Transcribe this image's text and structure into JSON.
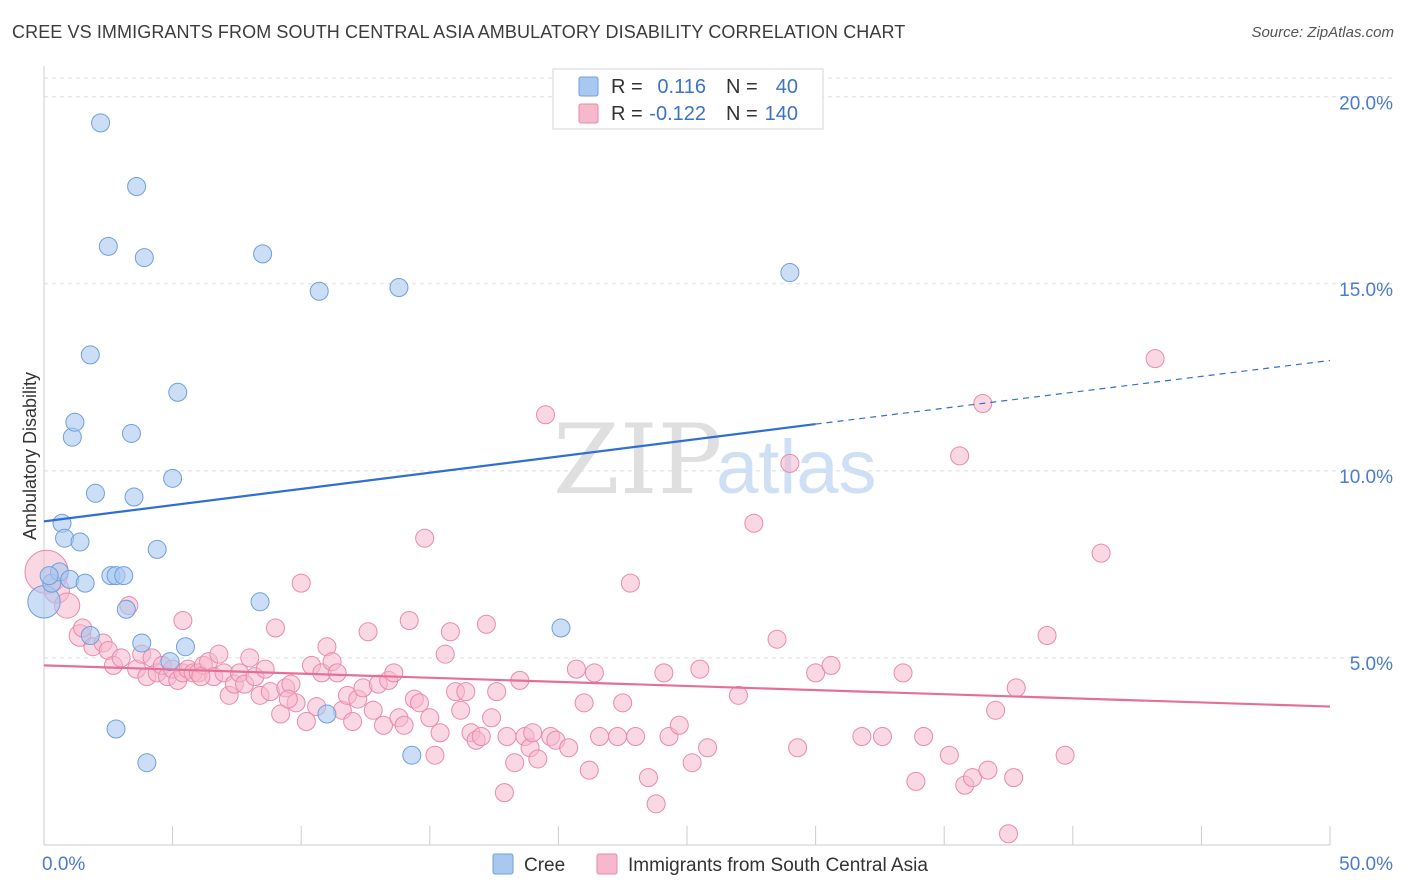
{
  "title": "CREE VS IMMIGRANTS FROM SOUTH CENTRAL ASIA AMBULATORY DISABILITY CORRELATION CHART",
  "source": "Source: ZipAtlas.com",
  "watermark": {
    "zip": "ZIP",
    "atlas": "atlas"
  },
  "colors": {
    "cree_fill": "#a9c8f0",
    "cree_stroke": "#6f9fdd",
    "cree_line": "#2f6fd1",
    "imm_fill": "#f6b8cc",
    "imm_stroke": "#ea8aa9",
    "imm_line": "#e4709a",
    "axis_label": "#4a7bd0",
    "grid": "#dddddd"
  },
  "legend": {
    "cree": {
      "r_label": "R =",
      "r_value": "0.116",
      "n_label": "N =",
      "n_value": "40"
    },
    "imm": {
      "r_label": "R =",
      "r_value": "-0.122",
      "n_label": "N =",
      "n_value": "140"
    }
  },
  "chart_data": {
    "type": "scatter",
    "title": "CREE VS IMMIGRANTS FROM SOUTH CENTRAL ASIA AMBULATORY DISABILITY CORRELATION CHART",
    "xlabel": "",
    "ylabel": "Ambulatory Disability",
    "xlim": [
      0,
      50
    ],
    "ylim": [
      0,
      20.5
    ],
    "x_ticks": [
      "0.0%",
      "50.0%"
    ],
    "y_ticks": [
      {
        "value": 5,
        "label": "5.0%"
      },
      {
        "value": 10,
        "label": "10.0%"
      },
      {
        "value": 15,
        "label": "15.0%"
      },
      {
        "value": 20,
        "label": "20.0%"
      }
    ],
    "grid": true,
    "legend_position": "top-center",
    "series": [
      {
        "name": "Cree",
        "color": "#a9c8f0",
        "trend": {
          "x0": 0,
          "y0": 8.65,
          "x1": 30,
          "y1": 11.25,
          "dashed_to_x": 50,
          "dashed_to_y": 12.95
        },
        "points": [
          [
            0.0,
            6.5,
            1.8
          ],
          [
            0.3,
            7.0,
            1
          ],
          [
            0.6,
            7.3,
            1
          ],
          [
            0.7,
            8.6,
            1
          ],
          [
            0.8,
            8.2,
            1
          ],
          [
            1.0,
            7.1,
            1
          ],
          [
            1.1,
            10.9,
            1
          ],
          [
            1.2,
            11.3,
            1
          ],
          [
            1.4,
            8.1,
            1
          ],
          [
            1.6,
            7.0,
            1
          ],
          [
            1.8,
            5.6,
            1
          ],
          [
            1.8,
            13.1,
            1
          ],
          [
            2.0,
            9.4,
            1
          ],
          [
            2.2,
            19.3,
            1
          ],
          [
            2.5,
            16.0,
            1
          ],
          [
            2.6,
            7.2,
            1
          ],
          [
            2.8,
            3.1,
            1
          ],
          [
            2.8,
            7.2,
            1
          ],
          [
            3.1,
            7.2,
            1
          ],
          [
            3.2,
            6.3,
            1
          ],
          [
            3.4,
            11.0,
            1
          ],
          [
            3.5,
            9.3,
            1
          ],
          [
            3.6,
            17.6,
            1
          ],
          [
            3.8,
            5.4,
            1
          ],
          [
            3.9,
            15.7,
            1
          ],
          [
            4.0,
            2.2,
            1
          ],
          [
            4.4,
            7.9,
            1
          ],
          [
            4.9,
            4.9,
            1
          ],
          [
            5.0,
            9.8,
            1
          ],
          [
            5.2,
            12.1,
            1
          ],
          [
            5.5,
            5.3,
            1
          ],
          [
            8.4,
            6.5,
            1
          ],
          [
            8.5,
            15.8,
            1
          ],
          [
            10.7,
            14.8,
            1
          ],
          [
            11.0,
            3.5,
            1
          ],
          [
            13.8,
            14.9,
            1
          ],
          [
            14.3,
            2.4,
            1
          ],
          [
            20.1,
            5.8,
            1
          ],
          [
            29.0,
            15.3,
            1
          ],
          [
            0.2,
            7.2,
            1
          ]
        ]
      },
      {
        "name": "Immigrants from South Central Asia",
        "color": "#f6b8cc",
        "trend": {
          "x0": 0,
          "y0": 4.8,
          "x1": 50,
          "y1": 3.7
        },
        "points": [
          [
            0.1,
            7.3,
            2.4
          ],
          [
            0.5,
            6.8,
            1.4
          ],
          [
            0.9,
            6.4,
            1.4
          ],
          [
            1.4,
            5.6,
            1.2
          ],
          [
            1.5,
            5.8,
            1
          ],
          [
            1.9,
            5.3,
            1
          ],
          [
            2.3,
            5.4,
            1
          ],
          [
            2.5,
            5.2,
            1
          ],
          [
            2.7,
            4.8,
            1
          ],
          [
            3.0,
            5.0,
            1
          ],
          [
            3.3,
            6.4,
            1
          ],
          [
            3.6,
            4.7,
            1
          ],
          [
            3.8,
            5.1,
            1
          ],
          [
            4.0,
            4.5,
            1
          ],
          [
            4.2,
            5.0,
            1
          ],
          [
            4.4,
            4.6,
            1
          ],
          [
            4.6,
            4.8,
            1
          ],
          [
            4.8,
            4.5,
            1
          ],
          [
            5.0,
            4.7,
            1
          ],
          [
            5.2,
            4.4,
            1
          ],
          [
            5.4,
            4.6,
            1
          ],
          [
            5.6,
            4.7,
            1
          ],
          [
            5.8,
            4.6,
            1
          ],
          [
            6.0,
            4.6,
            1
          ],
          [
            6.2,
            4.8,
            1
          ],
          [
            6.4,
            4.9,
            1
          ],
          [
            6.6,
            4.5,
            1
          ],
          [
            6.8,
            5.1,
            1
          ],
          [
            7.0,
            4.6,
            1
          ],
          [
            7.2,
            4.0,
            1
          ],
          [
            7.4,
            4.3,
            1
          ],
          [
            7.6,
            4.6,
            1
          ],
          [
            7.8,
            4.3,
            1
          ],
          [
            8.0,
            5.0,
            1
          ],
          [
            8.2,
            4.5,
            1
          ],
          [
            8.4,
            4.0,
            1
          ],
          [
            8.6,
            4.7,
            1
          ],
          [
            8.8,
            4.1,
            1
          ],
          [
            9.0,
            5.8,
            1
          ],
          [
            9.2,
            3.5,
            1
          ],
          [
            9.4,
            4.2,
            1
          ],
          [
            9.6,
            4.3,
            1
          ],
          [
            9.8,
            3.8,
            1
          ],
          [
            10.0,
            7.0,
            1
          ],
          [
            10.2,
            3.3,
            1
          ],
          [
            10.4,
            4.8,
            1
          ],
          [
            10.6,
            3.7,
            1
          ],
          [
            10.8,
            4.6,
            1
          ],
          [
            11.0,
            5.3,
            1
          ],
          [
            11.2,
            4.9,
            1
          ],
          [
            11.4,
            4.6,
            1
          ],
          [
            11.6,
            3.6,
            1
          ],
          [
            11.8,
            4.0,
            1
          ],
          [
            12.0,
            3.3,
            1
          ],
          [
            12.2,
            3.9,
            1
          ],
          [
            12.4,
            4.2,
            1
          ],
          [
            12.6,
            5.7,
            1
          ],
          [
            12.8,
            3.6,
            1
          ],
          [
            13.0,
            4.3,
            1
          ],
          [
            13.2,
            3.2,
            1
          ],
          [
            13.4,
            4.4,
            1
          ],
          [
            13.6,
            4.6,
            1
          ],
          [
            13.8,
            3.4,
            1
          ],
          [
            14.0,
            3.2,
            1
          ],
          [
            14.2,
            6.0,
            1
          ],
          [
            14.4,
            3.9,
            1
          ],
          [
            14.6,
            3.8,
            1
          ],
          [
            14.8,
            8.2,
            1
          ],
          [
            15.0,
            3.4,
            1
          ],
          [
            15.2,
            2.4,
            1
          ],
          [
            15.4,
            3.0,
            1
          ],
          [
            15.6,
            5.1,
            1
          ],
          [
            15.8,
            5.7,
            1
          ],
          [
            16.0,
            4.1,
            1
          ],
          [
            16.2,
            3.6,
            1
          ],
          [
            16.4,
            4.1,
            1
          ],
          [
            16.6,
            3.0,
            1
          ],
          [
            16.8,
            2.8,
            1
          ],
          [
            17.0,
            2.9,
            1
          ],
          [
            17.2,
            5.9,
            1
          ],
          [
            17.4,
            3.4,
            1
          ],
          [
            17.6,
            4.1,
            1
          ],
          [
            17.9,
            1.4,
            1
          ],
          [
            18.0,
            2.9,
            1
          ],
          [
            18.3,
            2.2,
            1
          ],
          [
            18.5,
            4.4,
            1
          ],
          [
            18.7,
            2.9,
            1
          ],
          [
            18.9,
            2.6,
            1
          ],
          [
            19.0,
            3.0,
            1
          ],
          [
            19.2,
            2.3,
            1
          ],
          [
            19.5,
            11.5,
            1
          ],
          [
            19.7,
            2.9,
            1
          ],
          [
            19.9,
            2.8,
            1
          ],
          [
            20.4,
            2.6,
            1
          ],
          [
            20.7,
            4.7,
            1
          ],
          [
            21.0,
            3.8,
            1
          ],
          [
            21.2,
            2.0,
            1
          ],
          [
            21.4,
            4.6,
            1
          ],
          [
            21.6,
            2.9,
            1
          ],
          [
            22.3,
            2.9,
            1
          ],
          [
            22.5,
            3.8,
            1
          ],
          [
            22.8,
            7.0,
            1
          ],
          [
            23.0,
            2.9,
            1
          ],
          [
            23.5,
            1.8,
            1
          ],
          [
            23.8,
            1.1,
            1
          ],
          [
            24.1,
            4.6,
            1
          ],
          [
            24.3,
            2.9,
            1
          ],
          [
            24.7,
            3.2,
            1
          ],
          [
            25.2,
            2.2,
            1
          ],
          [
            25.5,
            4.7,
            1
          ],
          [
            25.8,
            2.6,
            1
          ],
          [
            27.0,
            4.0,
            1
          ],
          [
            27.6,
            8.6,
            1
          ],
          [
            28.5,
            5.5,
            1
          ],
          [
            29.0,
            10.2,
            1
          ],
          [
            29.3,
            2.6,
            1
          ],
          [
            30.0,
            4.6,
            1
          ],
          [
            30.6,
            4.8,
            1
          ],
          [
            31.8,
            2.9,
            1
          ],
          [
            32.6,
            2.9,
            1
          ],
          [
            33.4,
            4.6,
            1
          ],
          [
            33.9,
            1.7,
            1
          ],
          [
            34.2,
            2.9,
            1
          ],
          [
            35.2,
            2.4,
            1
          ],
          [
            35.6,
            10.4,
            1
          ],
          [
            35.8,
            1.6,
            1
          ],
          [
            36.1,
            1.8,
            1
          ],
          [
            36.5,
            11.8,
            1
          ],
          [
            36.7,
            2.0,
            1
          ],
          [
            37.0,
            3.6,
            1
          ],
          [
            37.5,
            0.3,
            1
          ],
          [
            37.7,
            1.8,
            1
          ],
          [
            37.8,
            4.2,
            1
          ],
          [
            39.0,
            5.6,
            1
          ],
          [
            39.7,
            2.4,
            1
          ],
          [
            41.1,
            7.8,
            1
          ],
          [
            43.2,
            13.0,
            1
          ],
          [
            5.4,
            6.0,
            1
          ],
          [
            6.1,
            4.5,
            1
          ],
          [
            9.5,
            3.9,
            1
          ]
        ]
      }
    ]
  },
  "bottom_legend": [
    {
      "label": "Cree"
    },
    {
      "label": "Immigrants from South Central Asia"
    }
  ]
}
